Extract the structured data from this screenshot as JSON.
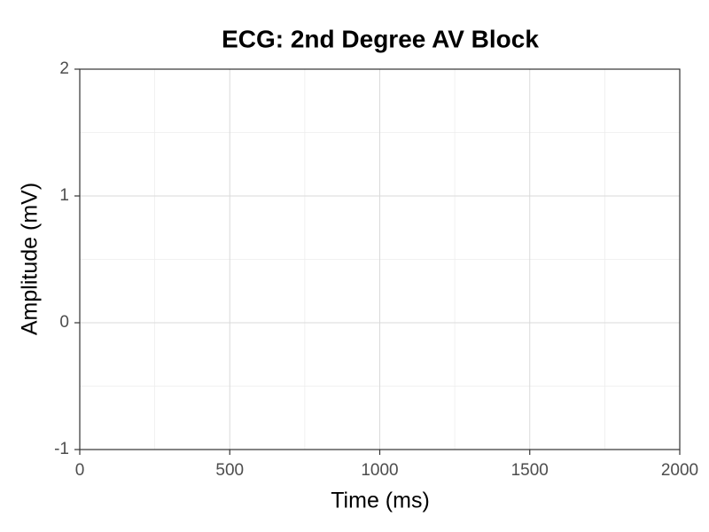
{
  "chart_data": {
    "type": "line",
    "title": "ECG: 2nd Degree AV Block",
    "x_label": "Time (ms)",
    "y_label": "Amplitude (mV)",
    "xlim": [
      0,
      2000
    ],
    "xticks": [
      0,
      500,
      1000,
      1500,
      2000
    ],
    "ylim": [
      -1,
      2
    ],
    "yticks": [
      -1,
      0,
      1,
      2
    ],
    "grid": true,
    "minor_grid": true
  }
}
